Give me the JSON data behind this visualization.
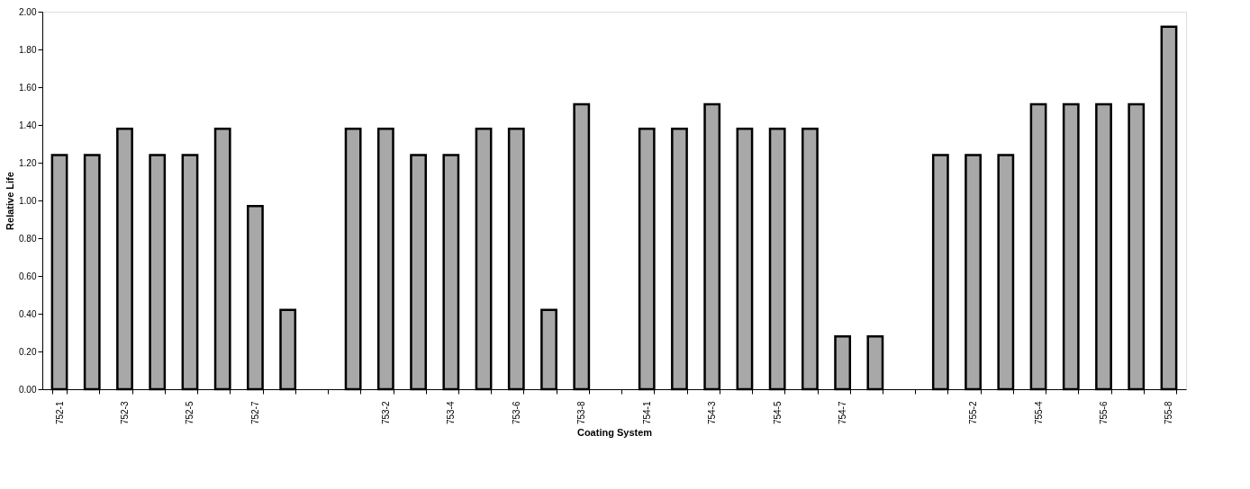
{
  "chart_data": {
    "type": "bar",
    "xlabel": "Coating System",
    "ylabel": "Relative Life",
    "categories": [
      "752-1",
      null,
      "752-3",
      null,
      "752-5",
      null,
      "752-7",
      null,
      null,
      null,
      "753-2",
      null,
      "753-4",
      null,
      "753-6",
      null,
      "753-8",
      null,
      "754-1",
      null,
      "754-3",
      null,
      "754-5",
      null,
      "754-7",
      null,
      null,
      null,
      "755-2",
      null,
      "755-4",
      null,
      "755-6",
      null,
      "755-8"
    ],
    "values": [
      1.24,
      1.24,
      1.38,
      1.24,
      1.24,
      1.38,
      0.97,
      0.42,
      null,
      1.38,
      1.38,
      1.24,
      1.24,
      1.38,
      1.38,
      0.42,
      1.51,
      null,
      1.38,
      1.38,
      1.51,
      1.38,
      1.38,
      1.38,
      0.28,
      0.28,
      null,
      1.24,
      1.24,
      1.24,
      1.51,
      1.51,
      1.51,
      1.51,
      1.92
    ],
    "color": "#a8a8a8",
    "ylim": [
      0,
      2
    ],
    "yticks": [
      {
        "value": 0,
        "label": "0.00"
      },
      {
        "value": 0.2,
        "label": "0.20"
      },
      {
        "value": 0.4,
        "label": "0.40"
      },
      {
        "value": 0.6,
        "label": "0.60"
      },
      {
        "value": 0.8,
        "label": "0.80"
      },
      {
        "value": 1,
        "label": "1.00"
      },
      {
        "value": 1.2,
        "label": "1.20"
      },
      {
        "value": 1.4,
        "label": "1.40"
      },
      {
        "value": 1.6,
        "label": "1.60"
      },
      {
        "value": 1.8,
        "label": "1.80"
      },
      {
        "value": 2,
        "label": "2.00"
      }
    ],
    "grid": false
  }
}
